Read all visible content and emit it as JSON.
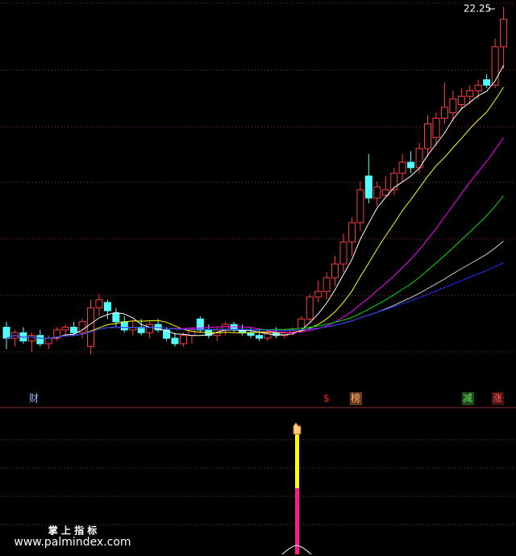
{
  "chart_data": {
    "type": "candlestick",
    "open": [
      10.6,
      10.2,
      10.4,
      10.1,
      10.3,
      10.0,
      10.2,
      10.5,
      10.6,
      10.4,
      9.9,
      11.3,
      11.5,
      11.1,
      10.8,
      10.5,
      10.6,
      10.4,
      10.7,
      10.5,
      10.2,
      10.0,
      10.3,
      10.9,
      10.5,
      10.3,
      10.5,
      10.7,
      10.5,
      10.4,
      10.3,
      10.2,
      10.4,
      10.3,
      10.4,
      10.5,
      10.9,
      11.7,
      11.9,
      12.4,
      12.9,
      13.7,
      14.4,
      16.1,
      15.3,
      15.4,
      15.6,
      16.2,
      16.6,
      16.4,
      17.1,
      17.5,
      18.2,
      18.4,
      18.7,
      19.0,
      19.2,
      19.6,
      19.4,
      20.8
    ],
    "high": [
      10.8,
      10.5,
      10.6,
      10.4,
      10.5,
      10.3,
      10.6,
      10.7,
      10.8,
      10.9,
      11.6,
      11.8,
      11.6,
      11.3,
      11.0,
      10.8,
      10.9,
      10.8,
      10.9,
      10.6,
      10.4,
      10.4,
      10.6,
      11.0,
      10.7,
      10.6,
      10.8,
      10.8,
      10.7,
      10.6,
      10.5,
      10.5,
      10.6,
      10.5,
      10.6,
      11.0,
      11.8,
      12.3,
      12.6,
      13.2,
      14.0,
      14.6,
      15.9,
      16.9,
      15.9,
      16.1,
      16.4,
      16.9,
      17.0,
      17.3,
      18.3,
      18.4,
      19.5,
      19.2,
      19.3,
      19.4,
      19.6,
      19.8,
      21.1,
      22.25
    ],
    "low": [
      9.8,
      9.9,
      10.0,
      9.7,
      9.9,
      9.8,
      10.1,
      10.3,
      10.3,
      10.2,
      9.6,
      11.0,
      10.9,
      10.6,
      10.4,
      10.3,
      10.3,
      10.2,
      10.4,
      10.1,
      9.9,
      9.9,
      10.0,
      10.4,
      10.2,
      10.1,
      10.3,
      10.4,
      10.3,
      10.2,
      10.1,
      10.1,
      10.2,
      10.2,
      10.3,
      10.4,
      10.8,
      11.5,
      11.6,
      12.1,
      12.6,
      13.2,
      14.1,
      15.1,
      15.0,
      15.3,
      15.4,
      15.9,
      16.2,
      16.2,
      16.8,
      17.2,
      18.0,
      18.1,
      18.5,
      18.7,
      18.9,
      19.3,
      19.3,
      20.0
    ],
    "close": [
      10.2,
      10.4,
      10.1,
      10.3,
      10.0,
      10.2,
      10.5,
      10.6,
      10.4,
      10.8,
      11.3,
      11.6,
      11.2,
      10.8,
      10.5,
      10.6,
      10.4,
      10.7,
      10.5,
      10.2,
      10.0,
      10.3,
      10.5,
      10.5,
      10.3,
      10.5,
      10.7,
      10.5,
      10.4,
      10.3,
      10.2,
      10.4,
      10.3,
      10.4,
      10.5,
      10.9,
      11.7,
      11.9,
      12.4,
      12.9,
      13.7,
      14.4,
      15.6,
      15.3,
      15.7,
      15.6,
      16.2,
      16.6,
      16.4,
      17.1,
      18.0,
      18.2,
      18.6,
      18.9,
      19.0,
      19.2,
      19.4,
      19.4,
      20.8,
      21.8
    ],
    "ylim": [
      9,
      22.5
    ],
    "up_color": "#ff3c3c",
    "down_color": "#54ffff",
    "moving_averages": [
      {
        "period": 5,
        "color": "#ffffff"
      },
      {
        "period": 10,
        "color": "#ffff00"
      },
      {
        "period": 20,
        "color": "#ff00ff"
      },
      {
        "period": 30,
        "color": "#00e000"
      },
      {
        "period": 45,
        "color": "#c8c8c8"
      },
      {
        "period": 60,
        "color": "#2030ff"
      }
    ],
    "signals": [
      "财",
      "$",
      "榜",
      "减",
      "涨"
    ],
    "watermark": {
      "title": "掌 上 指 标",
      "url": "www.palmindex.com"
    }
  }
}
